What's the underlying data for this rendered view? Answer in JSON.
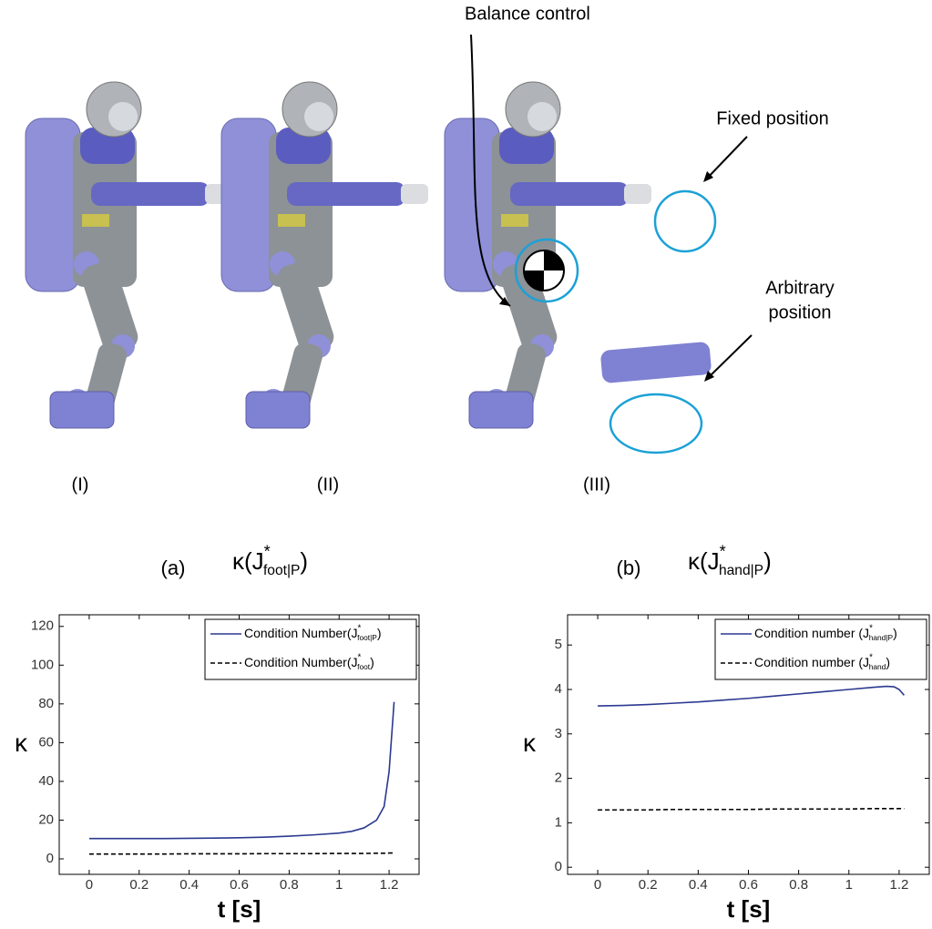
{
  "figure": {
    "annotations": {
      "balance": "Balance control",
      "fixed": "Fixed position",
      "arbitrary_1": "Arbitrary",
      "arbitrary_2": "position"
    },
    "poses": [
      "(I)",
      "(II)",
      "(III)"
    ]
  },
  "chart_data": [
    {
      "type": "line",
      "panel": "(a)",
      "title": "κ(J",
      "title_sup": "*",
      "title_sub": "foot|P",
      "title_end": ")",
      "xlabel": "t [s]",
      "ylabel": "κ",
      "x": [
        0,
        0.1,
        0.2,
        0.3,
        0.4,
        0.5,
        0.6,
        0.7,
        0.8,
        0.9,
        1.0,
        1.05,
        1.1,
        1.15,
        1.18,
        1.2,
        1.22
      ],
      "series": [
        {
          "name": "Condition Number(J",
          "name_sup": "*",
          "name_sub": "foot|P",
          "name_end": ")",
          "color": "#2b3990",
          "dash": false,
          "values": [
            10.5,
            10.5,
            10.5,
            10.5,
            10.6,
            10.7,
            10.9,
            11.2,
            11.7,
            12.4,
            13.3,
            14.2,
            16,
            20,
            27,
            45,
            81
          ]
        },
        {
          "name": "Condition Number(J",
          "name_sup": "*",
          "name_sub": "foot",
          "name_end": ")",
          "color": "#000000",
          "dash": true,
          "values": [
            2.5,
            2.5,
            2.5,
            2.5,
            2.6,
            2.6,
            2.6,
            2.7,
            2.7,
            2.7,
            2.8,
            2.8,
            2.8,
            2.9,
            2.9,
            3.0,
            3.0
          ]
        }
      ],
      "xlim": [
        -0.12,
        1.32
      ],
      "ylim": [
        -8,
        126
      ],
      "xticks": [
        0,
        0.2,
        0.4,
        0.6,
        0.8,
        1,
        1.2
      ],
      "yticks": [
        0,
        20,
        40,
        60,
        80,
        100,
        120
      ],
      "legend": "upper right"
    },
    {
      "type": "line",
      "panel": "(b)",
      "title": "κ(J",
      "title_sup": "*",
      "title_sub": "hand|P",
      "title_end": ")",
      "xlabel": "t [s]",
      "ylabel": "κ",
      "x": [
        0,
        0.1,
        0.2,
        0.3,
        0.4,
        0.5,
        0.6,
        0.7,
        0.8,
        0.9,
        1.0,
        1.1,
        1.15,
        1.18,
        1.2,
        1.22
      ],
      "series": [
        {
          "name": "Condition number (J",
          "name_sup": "*",
          "name_sub": "hand|P",
          "name_end": ")",
          "color": "#2b3990",
          "dash": false,
          "values": [
            3.63,
            3.64,
            3.66,
            3.69,
            3.72,
            3.76,
            3.8,
            3.85,
            3.9,
            3.95,
            4.0,
            4.05,
            4.07,
            4.06,
            4.0,
            3.87
          ]
        },
        {
          "name": "Condition number (J",
          "name_sup": "*",
          "name_sub": "hand",
          "name_end": ")",
          "color": "#000000",
          "dash": true,
          "values": [
            1.29,
            1.29,
            1.29,
            1.3,
            1.3,
            1.3,
            1.3,
            1.31,
            1.31,
            1.31,
            1.31,
            1.32,
            1.32,
            1.32,
            1.32,
            1.32
          ]
        }
      ],
      "xlim": [
        -0.12,
        1.32
      ],
      "ylim": [
        -0.16,
        5.68
      ],
      "xticks": [
        0,
        0.2,
        0.4,
        0.6,
        0.8,
        1,
        1.2
      ],
      "yticks": [
        0,
        1,
        2,
        3,
        4,
        5
      ],
      "legend": "upper right"
    }
  ]
}
